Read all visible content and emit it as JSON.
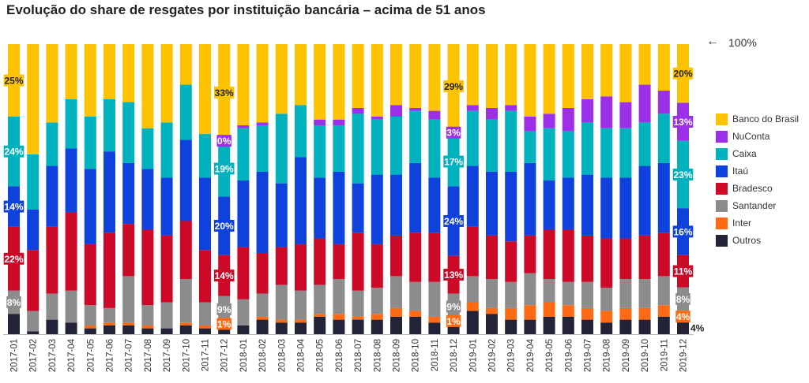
{
  "chart_title": "Evolução do share de resgates por instituição bancária – acima de 51 anos",
  "reference_label": "100%",
  "reference_arrow_icon": "arrow-left-icon",
  "legend": [
    {
      "name": "Banco do Brasil",
      "color": "#FDC300"
    },
    {
      "name": "NuConta",
      "color": "#9B30E8"
    },
    {
      "name": "Caixa",
      "color": "#00B2BD"
    },
    {
      "name": "Itaú",
      "color": "#0F41DC"
    },
    {
      "name": "Bradesco",
      "color": "#CC0A28"
    },
    {
      "name": "Santander",
      "color": "#8C8C8C"
    },
    {
      "name": "Inter",
      "color": "#FF6A14"
    },
    {
      "name": "Outros",
      "color": "#232338"
    }
  ],
  "chart_data": {
    "type": "bar",
    "stacked": true,
    "orientation": "vertical",
    "ylim": [
      0,
      100
    ],
    "xlabel": "",
    "ylabel": "",
    "legend_position": "right",
    "grid": false,
    "categories": [
      "2017-01",
      "2017-02",
      "2017-03",
      "2017-04",
      "2017-05",
      "2017-06",
      "2017-07",
      "2017-08",
      "2017-09",
      "2017-10",
      "2017-11",
      "2017-12",
      "2018-01",
      "2018-02",
      "2018-03",
      "2018-04",
      "2018-05",
      "2018-06",
      "2018-07",
      "2018-08",
      "2018-09",
      "2018-10",
      "2018-11",
      "2018-12",
      "2019-01",
      "2019-02",
      "2019-03",
      "2019-04",
      "2019-05",
      "2019-06",
      "2019-07",
      "2019-08",
      "2019-09",
      "2019-10",
      "2019-11",
      "2019-12"
    ],
    "series": [
      {
        "name": "Outros",
        "color": "#232338",
        "values": [
          7,
          1,
          5,
          4,
          2,
          3,
          3,
          2,
          2,
          3,
          2,
          3,
          3,
          5,
          4,
          4,
          6,
          5,
          5,
          5,
          6,
          6,
          4,
          4,
          8,
          7,
          5,
          5,
          6,
          6,
          5,
          4,
          5,
          5,
          6,
          4
        ]
      },
      {
        "name": "Inter",
        "color": "#FF6A14",
        "values": [
          0,
          0,
          0,
          0,
          1,
          1,
          1,
          1,
          0,
          1,
          1,
          1,
          0,
          1,
          1,
          1,
          1,
          2,
          1,
          2,
          3,
          2,
          2,
          1,
          3,
          2,
          4,
          5,
          5,
          4,
          4,
          4,
          4,
          4,
          4,
          4
        ]
      },
      {
        "name": "Santander",
        "color": "#8C8C8C",
        "values": [
          8,
          7,
          9,
          11,
          7,
          5,
          16,
          7,
          9,
          15,
          8,
          9,
          9,
          8,
          12,
          10,
          10,
          12,
          9,
          9,
          11,
          10,
          12,
          9,
          9,
          10,
          9,
          11,
          8,
          8,
          9,
          8,
          10,
          10,
          10,
          8
        ]
      },
      {
        "name": "Bradesco",
        "color": "#CC0A28",
        "values": [
          22,
          21,
          23,
          27,
          21,
          26,
          18,
          26,
          23,
          20,
          18,
          14,
          18,
          14,
          13,
          16,
          16,
          12,
          20,
          15,
          14,
          17,
          17,
          13,
          17,
          15,
          14,
          13,
          17,
          18,
          16,
          17,
          14,
          15,
          15,
          11
        ]
      },
      {
        "name": "Itaú",
        "color": "#0F41DC",
        "values": [
          14,
          14,
          21,
          22,
          26,
          28,
          21,
          21,
          20,
          28,
          25,
          20,
          23,
          28,
          22,
          30,
          21,
          25,
          17,
          24,
          21,
          24,
          19,
          24,
          21,
          22,
          24,
          25,
          17,
          18,
          21,
          21,
          21,
          24,
          24,
          16
        ]
      },
      {
        "name": "Caixa",
        "color": "#00B2BD",
        "values": [
          24,
          19,
          15,
          17,
          18,
          18,
          21,
          14,
          19,
          19,
          15,
          19,
          18,
          16,
          24,
          18,
          18,
          16,
          24,
          19,
          20,
          18,
          20,
          17,
          19,
          18,
          21,
          11,
          18,
          16,
          18,
          17,
          17,
          15,
          17,
          23
        ]
      },
      {
        "name": "NuConta",
        "color": "#9B30E8",
        "values": [
          0,
          0,
          0,
          0,
          0,
          0,
          0,
          0,
          0,
          0,
          0,
          0,
          1,
          1,
          0,
          0,
          2,
          2,
          2,
          1,
          4,
          1,
          3,
          3,
          2,
          4,
          2,
          5,
          5,
          8,
          8,
          11,
          9,
          13,
          8,
          13
        ]
      },
      {
        "name": "Banco do Brasil",
        "color": "#FDC300",
        "values": [
          25,
          38,
          27,
          19,
          25,
          19,
          20,
          29,
          27,
          14,
          31,
          33,
          28,
          27,
          24,
          21,
          26,
          26,
          22,
          25,
          21,
          22,
          23,
          29,
          21,
          22,
          21,
          25,
          24,
          22,
          19,
          18,
          20,
          14,
          16,
          20
        ]
      }
    ],
    "data_labels": [
      {
        "category": "2017-01",
        "labels": [
          {
            "series": "Banco do Brasil",
            "text": "25%"
          },
          {
            "series": "Caixa",
            "text": "24%"
          },
          {
            "series": "Itaú",
            "text": "14%"
          },
          {
            "series": "Bradesco",
            "text": "22%"
          },
          {
            "series": "Santander",
            "text": "8%"
          }
        ]
      },
      {
        "category": "2017-12",
        "labels": [
          {
            "series": "Banco do Brasil",
            "text": "33%"
          },
          {
            "series": "NuConta",
            "text": "0%"
          },
          {
            "series": "Caixa",
            "text": "19%"
          },
          {
            "series": "Itaú",
            "text": "20%"
          },
          {
            "series": "Bradesco",
            "text": "14%"
          },
          {
            "series": "Santander",
            "text": "9%"
          },
          {
            "series": "Inter",
            "text": "1%"
          }
        ]
      },
      {
        "category": "2018-12",
        "labels": [
          {
            "series": "Banco do Brasil",
            "text": "29%"
          },
          {
            "series": "NuConta",
            "text": "3%"
          },
          {
            "series": "Caixa",
            "text": "17%"
          },
          {
            "series": "Itaú",
            "text": "24%"
          },
          {
            "series": "Bradesco",
            "text": "13%"
          },
          {
            "series": "Santander",
            "text": "9%"
          },
          {
            "series": "Inter",
            "text": "1%"
          }
        ]
      },
      {
        "category": "2019-12",
        "labels": [
          {
            "series": "Banco do Brasil",
            "text": "20%"
          },
          {
            "series": "NuConta",
            "text": "13%"
          },
          {
            "series": "Caixa",
            "text": "23%"
          },
          {
            "series": "Itaú",
            "text": "16%"
          },
          {
            "series": "Bradesco",
            "text": "11%"
          },
          {
            "series": "Santander",
            "text": "8%"
          },
          {
            "series": "Inter",
            "text": "4%"
          }
        ]
      }
    ],
    "outside_labels": [
      {
        "category": "2019-12",
        "series": "Outros",
        "text": "4%"
      }
    ]
  }
}
